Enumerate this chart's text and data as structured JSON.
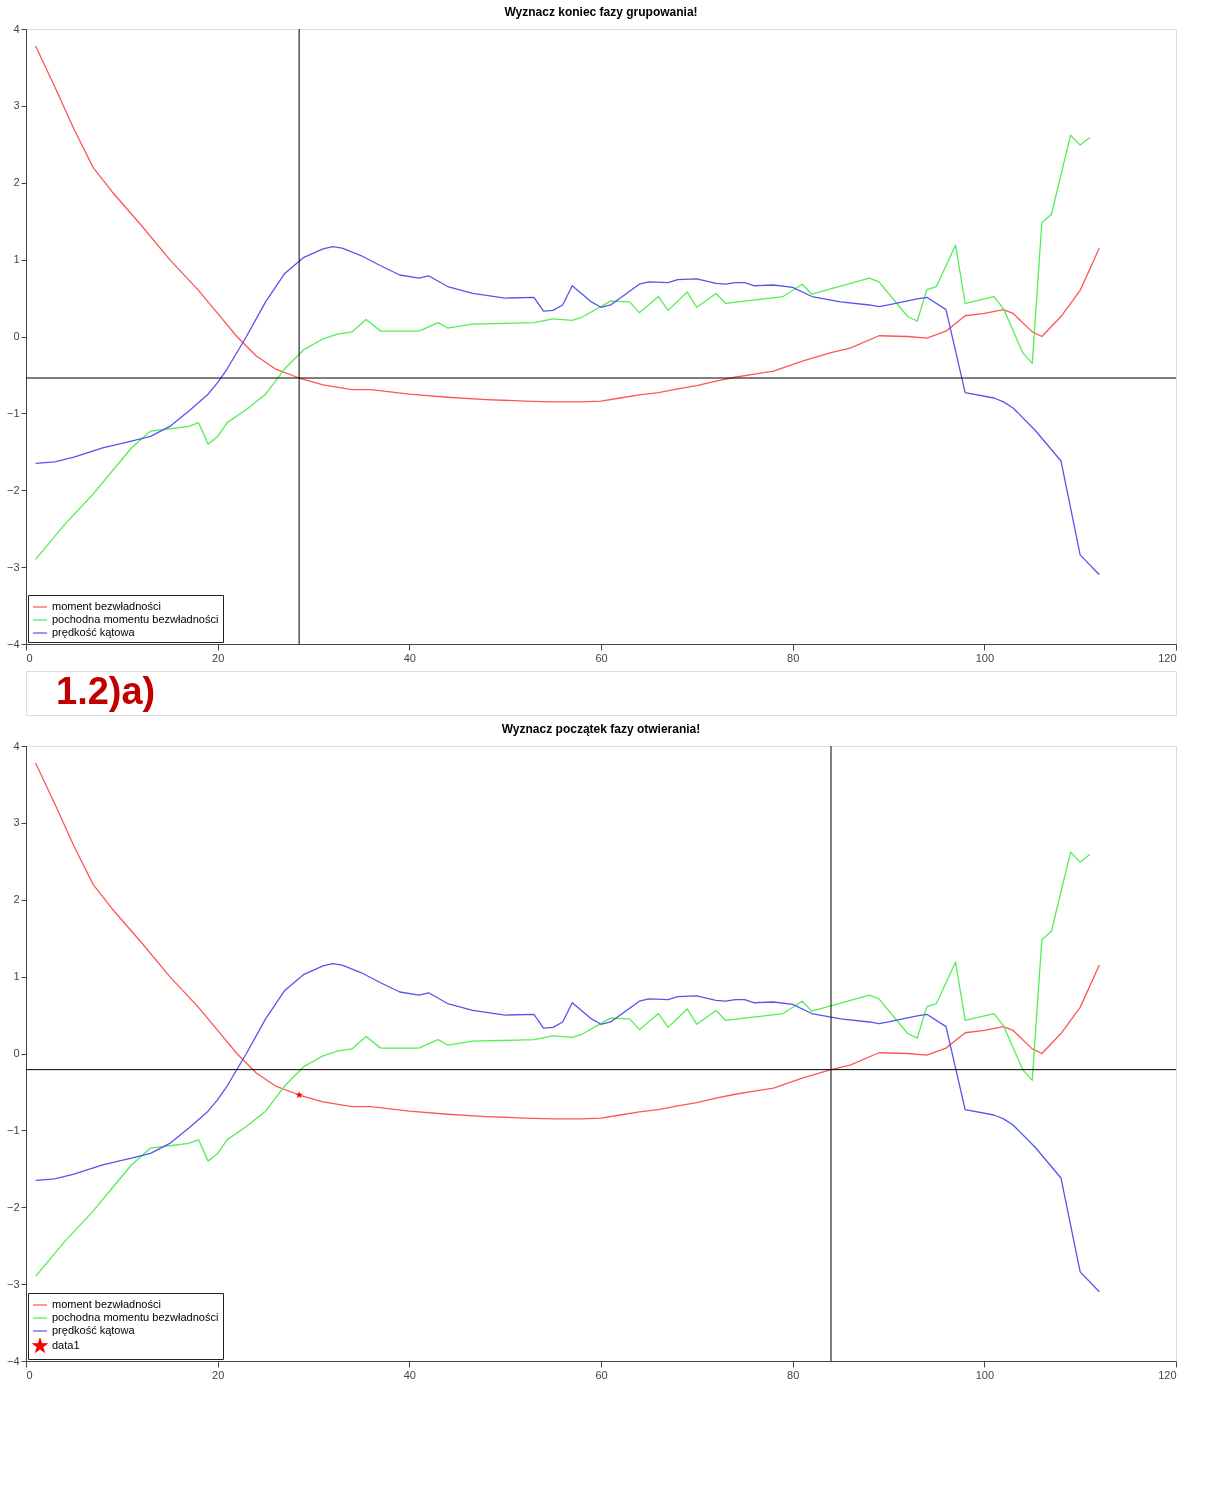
{
  "chart_data": [
    {
      "type": "line",
      "title": "Wyznacz koniec fazy grupowania!",
      "annotations": [
        "1.2)a)"
      ],
      "xlim": [
        0,
        120
      ],
      "ylim": [
        -4,
        4
      ],
      "xticks": [
        0,
        20,
        40,
        60,
        80,
        100,
        120
      ],
      "yticks": [
        -4,
        -3,
        -2,
        -1,
        0,
        1,
        2,
        3,
        4
      ],
      "grid": false,
      "legend": "bottom left",
      "marker": "none",
      "line_style": "solid",
      "ref_lines": [
        {
          "axis": "x",
          "value": 28.5,
          "label": null,
          "color": "#000000"
        },
        {
          "axis": "y",
          "value": -0.54,
          "label": null,
          "color": "#000000"
        }
      ],
      "series": [
        {
          "name": "moment bezwładności",
          "color": "#ff5555",
          "x": [
            1,
            3,
            5,
            7,
            9,
            12,
            15,
            18,
            20,
            22,
            24,
            26,
            28.5,
            31,
            34,
            36,
            40,
            44,
            48,
            52,
            55,
            58,
            60,
            62,
            64,
            66,
            68,
            70,
            72,
            74,
            76,
            78,
            81,
            84,
            86,
            89,
            92,
            94,
            96,
            98,
            100,
            102,
            103,
            105,
            106,
            108,
            110,
            112
          ],
          "values": [
            3.78,
            3.25,
            2.7,
            2.2,
            1.88,
            1.45,
            1.0,
            0.6,
            0.3,
            0.0,
            -0.25,
            -0.42,
            -0.54,
            -0.63,
            -0.69,
            -0.69,
            -0.75,
            -0.79,
            -0.82,
            -0.84,
            -0.85,
            -0.85,
            -0.84,
            -0.8,
            -0.76,
            -0.73,
            -0.68,
            -0.64,
            -0.58,
            -0.53,
            -0.49,
            -0.45,
            -0.32,
            -0.21,
            -0.15,
            0.01,
            0.0,
            -0.02,
            0.07,
            0.27,
            0.3,
            0.35,
            0.3,
            0.06,
            0.0,
            0.26,
            0.6,
            1.15
          ]
        },
        {
          "name": "pochodna momentu bezwładności",
          "color": "#55ee55",
          "x": [
            1,
            4,
            7,
            9,
            11,
            13,
            15,
            17,
            18,
            19,
            20,
            21,
            23,
            25,
            27,
            29,
            31,
            32.5,
            34,
            35.5,
            37,
            40,
            41,
            43,
            44,
            46.6,
            53,
            55,
            57,
            58,
            61,
            63,
            64,
            66,
            67,
            69,
            70,
            72,
            73,
            79,
            81,
            82,
            88,
            89,
            92,
            93,
            94,
            95,
            97,
            98,
            101,
            102,
            104,
            105,
            106,
            107,
            109,
            110,
            111
          ],
          "values": [
            -2.9,
            -2.45,
            -2.05,
            -1.75,
            -1.45,
            -1.23,
            -1.2,
            -1.17,
            -1.12,
            -1.4,
            -1.3,
            -1.12,
            -0.95,
            -0.75,
            -0.42,
            -0.17,
            -0.03,
            0.03,
            0.06,
            0.22,
            0.07,
            0.07,
            0.07,
            0.18,
            0.11,
            0.16,
            0.18,
            0.23,
            0.21,
            0.25,
            0.46,
            0.45,
            0.31,
            0.52,
            0.34,
            0.58,
            0.38,
            0.56,
            0.43,
            0.52,
            0.68,
            0.55,
            0.76,
            0.71,
            0.26,
            0.2,
            0.61,
            0.65,
            1.19,
            0.43,
            0.52,
            0.36,
            -0.21,
            -0.35,
            1.48,
            1.59,
            2.62,
            2.49,
            2.59
          ]
        },
        {
          "name": "prędkość kątowa",
          "color": "#5555ee",
          "x": [
            1,
            3,
            5,
            8,
            11,
            13,
            15,
            17,
            19,
            20,
            21,
            23,
            25,
            27,
            29,
            31,
            32,
            33,
            35,
            37,
            39,
            41,
            42,
            44,
            46.6,
            50,
            53,
            54,
            55,
            56,
            57,
            59,
            60,
            61,
            64,
            65,
            67,
            68,
            70,
            72,
            73,
            74,
            75,
            76,
            78,
            80,
            82,
            85,
            88,
            89,
            90,
            93,
            94,
            96,
            98,
            101,
            102,
            103,
            105.3,
            108,
            110,
            112
          ],
          "values": [
            -1.65,
            -1.63,
            -1.57,
            -1.45,
            -1.36,
            -1.3,
            -1.17,
            -0.97,
            -0.75,
            -0.6,
            -0.42,
            0.0,
            0.45,
            0.82,
            1.03,
            1.14,
            1.17,
            1.15,
            1.05,
            0.92,
            0.8,
            0.76,
            0.79,
            0.65,
            0.56,
            0.5,
            0.51,
            0.33,
            0.34,
            0.41,
            0.66,
            0.45,
            0.38,
            0.41,
            0.68,
            0.71,
            0.7,
            0.74,
            0.75,
            0.69,
            0.68,
            0.7,
            0.7,
            0.66,
            0.67,
            0.64,
            0.52,
            0.45,
            0.41,
            0.39,
            0.41,
            0.49,
            0.51,
            0.35,
            -0.73,
            -0.8,
            -0.85,
            -0.93,
            -1.22,
            -1.62,
            -2.84,
            -3.1
          ]
        }
      ]
    },
    {
      "type": "line",
      "title": "Wyznacz początek fazy otwierania!",
      "xlim": [
        0,
        120
      ],
      "ylim": [
        -4,
        4
      ],
      "xticks": [
        0,
        20,
        40,
        60,
        80,
        100,
        120
      ],
      "yticks": [
        -4,
        -3,
        -2,
        -1,
        0,
        1,
        2,
        3,
        4
      ],
      "grid": false,
      "legend": "bottom left",
      "marker": "none",
      "line_style": "solid",
      "ref_lines": [
        {
          "axis": "x",
          "value": 84,
          "label": null,
          "color": "#000000"
        },
        {
          "axis": "y",
          "value": -0.21,
          "label": null,
          "color": "#000000"
        }
      ],
      "series": [
        {
          "name": "moment bezwładności",
          "color": "#ff5555",
          "x": [
            1,
            3,
            5,
            7,
            9,
            12,
            15,
            18,
            20,
            22,
            24,
            26,
            28.5,
            31,
            34,
            36,
            40,
            44,
            48,
            52,
            55,
            58,
            60,
            62,
            64,
            66,
            68,
            70,
            72,
            74,
            76,
            78,
            81,
            84,
            86,
            89,
            92,
            94,
            96,
            98,
            100,
            102,
            103,
            105,
            106,
            108,
            110,
            112
          ],
          "values": [
            3.78,
            3.25,
            2.7,
            2.2,
            1.88,
            1.45,
            1.0,
            0.6,
            0.3,
            0.0,
            -0.25,
            -0.42,
            -0.54,
            -0.63,
            -0.69,
            -0.69,
            -0.75,
            -0.79,
            -0.82,
            -0.84,
            -0.85,
            -0.85,
            -0.84,
            -0.8,
            -0.76,
            -0.73,
            -0.68,
            -0.64,
            -0.58,
            -0.53,
            -0.49,
            -0.45,
            -0.32,
            -0.21,
            -0.15,
            0.01,
            0.0,
            -0.02,
            0.07,
            0.27,
            0.3,
            0.35,
            0.3,
            0.06,
            0.0,
            0.26,
            0.6,
            1.15
          ]
        },
        {
          "name": "pochodna momentu bezwładności",
          "color": "#55ee55",
          "x": [
            1,
            4,
            7,
            9,
            11,
            13,
            15,
            17,
            18,
            19,
            20,
            21,
            23,
            25,
            27,
            29,
            31,
            32.5,
            34,
            35.5,
            37,
            40,
            41,
            43,
            44,
            46.6,
            53,
            55,
            57,
            58,
            61,
            63,
            64,
            66,
            67,
            69,
            70,
            72,
            73,
            79,
            81,
            82,
            88,
            89,
            92,
            93,
            94,
            95,
            97,
            98,
            101,
            102,
            104,
            105,
            106,
            107,
            109,
            110,
            111
          ],
          "values": [
            -2.9,
            -2.45,
            -2.05,
            -1.75,
            -1.45,
            -1.23,
            -1.2,
            -1.17,
            -1.12,
            -1.4,
            -1.3,
            -1.12,
            -0.95,
            -0.75,
            -0.42,
            -0.17,
            -0.03,
            0.03,
            0.06,
            0.22,
            0.07,
            0.07,
            0.07,
            0.18,
            0.11,
            0.16,
            0.18,
            0.23,
            0.21,
            0.25,
            0.46,
            0.45,
            0.31,
            0.52,
            0.34,
            0.58,
            0.38,
            0.56,
            0.43,
            0.52,
            0.68,
            0.55,
            0.76,
            0.71,
            0.26,
            0.2,
            0.61,
            0.65,
            1.19,
            0.43,
            0.52,
            0.36,
            -0.21,
            -0.35,
            1.48,
            1.59,
            2.62,
            2.49,
            2.59
          ]
        },
        {
          "name": "prędkość kątowa",
          "color": "#5555ee",
          "x": [
            1,
            3,
            5,
            8,
            11,
            13,
            15,
            17,
            19,
            20,
            21,
            23,
            25,
            27,
            29,
            31,
            32,
            33,
            35,
            37,
            39,
            41,
            42,
            44,
            46.6,
            50,
            53,
            54,
            55,
            56,
            57,
            59,
            60,
            61,
            64,
            65,
            67,
            68,
            70,
            72,
            73,
            74,
            75,
            76,
            78,
            80,
            82,
            85,
            88,
            89,
            90,
            93,
            94,
            96,
            98,
            101,
            102,
            103,
            105.3,
            108,
            110,
            112
          ],
          "values": [
            -1.65,
            -1.63,
            -1.57,
            -1.45,
            -1.36,
            -1.3,
            -1.17,
            -0.97,
            -0.75,
            -0.6,
            -0.42,
            0.0,
            0.45,
            0.82,
            1.03,
            1.14,
            1.17,
            1.15,
            1.05,
            0.92,
            0.8,
            0.76,
            0.79,
            0.65,
            0.56,
            0.5,
            0.51,
            0.33,
            0.34,
            0.41,
            0.66,
            0.45,
            0.38,
            0.41,
            0.68,
            0.71,
            0.7,
            0.74,
            0.75,
            0.69,
            0.68,
            0.7,
            0.7,
            0.66,
            0.67,
            0.64,
            0.52,
            0.45,
            0.41,
            0.39,
            0.41,
            0.49,
            0.51,
            0.35,
            -0.73,
            -0.8,
            -0.85,
            -0.93,
            -1.22,
            -1.62,
            -2.84,
            -3.1
          ]
        },
        {
          "name": "data1",
          "type": "scatter",
          "marker": "star",
          "color": "#ff0000",
          "x": [
            28.5
          ],
          "values": [
            -0.54
          ]
        }
      ]
    }
  ]
}
